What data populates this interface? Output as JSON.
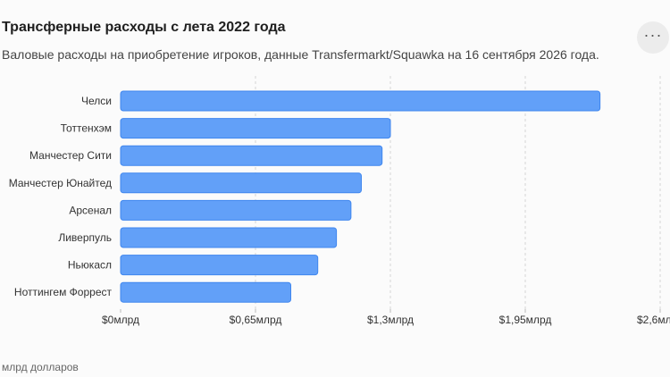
{
  "header": {
    "title": "Трансферные расходы с лета 2022 года",
    "subtitle": "Валовые расходы на приобретение игроков, данные Transfermarkt/Squawka на 16 сентября 2026 года.",
    "more_icon": "more-horizontal-icon"
  },
  "footer": {
    "unit_note": "млрд долларов"
  },
  "chart_data": {
    "type": "bar",
    "orientation": "horizontal",
    "title": "Трансферные расходы с лета 2022 года",
    "subtitle": "Валовые расходы на приобретение игроков, данные Transfermarkt/Squawka на 16 сентября 2026 года.",
    "xlabel": "млрд долларов",
    "ylabel": "",
    "categories": [
      "Челси",
      "Тоттенхэм",
      "Манчестер Сити",
      "Манчестер Юнайтед",
      "Арсенал",
      "Ливерпуль",
      "Ньюкасл",
      "Ноттингем Форрест"
    ],
    "values": [
      2.31,
      1.3,
      1.26,
      1.16,
      1.11,
      1.04,
      0.95,
      0.82
    ],
    "xlim": [
      0,
      2.6
    ],
    "ticks": [
      0,
      0.65,
      1.3,
      1.95,
      2.6
    ],
    "tick_labels": [
      "$0млрд",
      "$0,65млрд",
      "$1,3млрд",
      "$1,95млрд",
      "$2,6млрд"
    ],
    "grid": "vertical dashed",
    "bar_color": "#62a0f8",
    "bar_stroke": "#3f86ee"
  }
}
